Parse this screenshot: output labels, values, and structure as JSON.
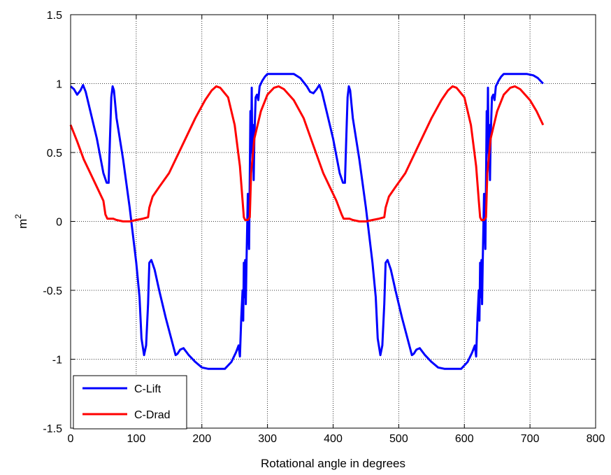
{
  "chart_data": {
    "type": "line",
    "title": "",
    "xlabel": "Rotational angle in degrees",
    "ylabel_base": "m",
    "ylabel_sup": "2",
    "xlim": [
      0,
      800
    ],
    "ylim": [
      -1.5,
      1.5
    ],
    "xticks": [
      0,
      100,
      200,
      300,
      400,
      500,
      600,
      700,
      800
    ],
    "yticks": [
      -1.5,
      -1,
      -0.5,
      0,
      0.5,
      1,
      1.5
    ],
    "xtick_labels": [
      "0",
      "100",
      "200",
      "300",
      "400",
      "500",
      "600",
      "700",
      "800"
    ],
    "ytick_labels": [
      "-1.5",
      "-1",
      "-0.5",
      "0",
      "0.5",
      "1",
      "1.5"
    ],
    "grid": true,
    "legend_position": "bottom-left",
    "series": [
      {
        "name": "C-Lift",
        "color": "#0000ff",
        "points": [
          [
            0,
            0.98
          ],
          [
            5,
            0.96
          ],
          [
            10,
            0.92
          ],
          [
            15,
            0.95
          ],
          [
            19,
            0.99
          ],
          [
            23,
            0.94
          ],
          [
            30,
            0.8
          ],
          [
            40,
            0.6
          ],
          [
            50,
            0.35
          ],
          [
            55,
            0.28
          ],
          [
            58,
            0.28
          ],
          [
            60,
            0.6
          ],
          [
            62,
            0.9
          ],
          [
            64,
            0.98
          ],
          [
            66,
            0.95
          ],
          [
            70,
            0.75
          ],
          [
            80,
            0.45
          ],
          [
            90,
            0.1
          ],
          [
            100,
            -0.3
          ],
          [
            105,
            -0.55
          ],
          [
            108,
            -0.85
          ],
          [
            112,
            -0.97
          ],
          [
            115,
            -0.9
          ],
          [
            118,
            -0.6
          ],
          [
            120,
            -0.3
          ],
          [
            123,
            -0.28
          ],
          [
            128,
            -0.35
          ],
          [
            135,
            -0.5
          ],
          [
            145,
            -0.7
          ],
          [
            155,
            -0.88
          ],
          [
            160,
            -0.97
          ],
          [
            163,
            -0.96
          ],
          [
            167,
            -0.93
          ],
          [
            172,
            -0.92
          ],
          [
            180,
            -0.97
          ],
          [
            190,
            -1.02
          ],
          [
            200,
            -1.06
          ],
          [
            210,
            -1.07
          ],
          [
            225,
            -1.07
          ],
          [
            235,
            -1.07
          ],
          [
            245,
            -1.02
          ],
          [
            252,
            -0.95
          ],
          [
            256,
            -0.9
          ],
          [
            258,
            -0.98
          ],
          [
            260,
            -0.7
          ],
          [
            262,
            -0.5
          ],
          [
            263,
            -0.72
          ],
          [
            264,
            -0.3
          ],
          [
            265,
            -0.55
          ],
          [
            266,
            -0.28
          ],
          [
            267,
            -0.6
          ],
          [
            268,
            -0.3
          ],
          [
            270,
            0.2
          ],
          [
            272,
            -0.2
          ],
          [
            274,
            0.8
          ],
          [
            275,
            0.5
          ],
          [
            276,
            0.97
          ],
          [
            277,
            0.4
          ],
          [
            278,
            0.7
          ],
          [
            279,
            0.3
          ],
          [
            280,
            0.6
          ],
          [
            282,
            0.9
          ],
          [
            284,
            0.92
          ],
          [
            286,
            0.88
          ],
          [
            288,
            0.98
          ],
          [
            292,
            1.02
          ],
          [
            296,
            1.05
          ],
          [
            300,
            1.07
          ],
          [
            310,
            1.07
          ],
          [
            320,
            1.07
          ],
          [
            340,
            1.07
          ],
          [
            350,
            1.04
          ],
          [
            360,
            0.98
          ],
          [
            365,
            0.94
          ],
          [
            370,
            0.93
          ],
          [
            375,
            0.96
          ],
          [
            379,
            0.99
          ],
          [
            383,
            0.94
          ],
          [
            390,
            0.8
          ],
          [
            400,
            0.6
          ],
          [
            410,
            0.35
          ],
          [
            415,
            0.28
          ],
          [
            418,
            0.28
          ],
          [
            420,
            0.6
          ],
          [
            422,
            0.9
          ],
          [
            424,
            0.98
          ],
          [
            426,
            0.95
          ],
          [
            430,
            0.75
          ],
          [
            440,
            0.45
          ],
          [
            450,
            0.1
          ],
          [
            460,
            -0.3
          ],
          [
            465,
            -0.55
          ],
          [
            468,
            -0.85
          ],
          [
            472,
            -0.97
          ],
          [
            475,
            -0.9
          ],
          [
            478,
            -0.6
          ],
          [
            480,
            -0.3
          ],
          [
            483,
            -0.28
          ],
          [
            488,
            -0.35
          ],
          [
            495,
            -0.5
          ],
          [
            505,
            -0.7
          ],
          [
            515,
            -0.88
          ],
          [
            520,
            -0.97
          ],
          [
            523,
            -0.96
          ],
          [
            527,
            -0.93
          ],
          [
            532,
            -0.92
          ],
          [
            540,
            -0.97
          ],
          [
            550,
            -1.02
          ],
          [
            560,
            -1.06
          ],
          [
            570,
            -1.07
          ],
          [
            585,
            -1.07
          ],
          [
            595,
            -1.07
          ],
          [
            605,
            -1.02
          ],
          [
            612,
            -0.95
          ],
          [
            616,
            -0.9
          ],
          [
            618,
            -0.98
          ],
          [
            620,
            -0.7
          ],
          [
            622,
            -0.5
          ],
          [
            623,
            -0.72
          ],
          [
            624,
            -0.3
          ],
          [
            625,
            -0.55
          ],
          [
            626,
            -0.28
          ],
          [
            627,
            -0.6
          ],
          [
            628,
            -0.3
          ],
          [
            630,
            0.2
          ],
          [
            632,
            -0.2
          ],
          [
            634,
            0.8
          ],
          [
            635,
            0.5
          ],
          [
            636,
            0.97
          ],
          [
            637,
            0.4
          ],
          [
            638,
            0.7
          ],
          [
            639,
            0.3
          ],
          [
            640,
            0.6
          ],
          [
            642,
            0.9
          ],
          [
            644,
            0.92
          ],
          [
            646,
            0.88
          ],
          [
            648,
            0.98
          ],
          [
            652,
            1.02
          ],
          [
            656,
            1.05
          ],
          [
            660,
            1.07
          ],
          [
            670,
            1.07
          ],
          [
            680,
            1.07
          ],
          [
            695,
            1.07
          ],
          [
            705,
            1.06
          ],
          [
            712,
            1.04
          ],
          [
            720,
            1.0
          ]
        ]
      },
      {
        "name": "C-Drad",
        "color": "#ff0000",
        "points": [
          [
            0,
            0.7
          ],
          [
            10,
            0.58
          ],
          [
            20,
            0.45
          ],
          [
            30,
            0.35
          ],
          [
            40,
            0.25
          ],
          [
            50,
            0.15
          ],
          [
            53,
            0.05
          ],
          [
            56,
            0.02
          ],
          [
            65,
            0.02
          ],
          [
            70,
            0.01
          ],
          [
            80,
            0.0
          ],
          [
            90,
            0.0
          ],
          [
            100,
            0.01
          ],
          [
            110,
            0.02
          ],
          [
            118,
            0.03
          ],
          [
            120,
            0.1
          ],
          [
            125,
            0.18
          ],
          [
            135,
            0.25
          ],
          [
            150,
            0.35
          ],
          [
            170,
            0.55
          ],
          [
            190,
            0.75
          ],
          [
            205,
            0.88
          ],
          [
            215,
            0.95
          ],
          [
            222,
            0.98
          ],
          [
            228,
            0.97
          ],
          [
            240,
            0.9
          ],
          [
            250,
            0.7
          ],
          [
            258,
            0.4
          ],
          [
            262,
            0.15
          ],
          [
            264,
            0.03
          ],
          [
            266,
            0.01
          ],
          [
            270,
            0.01
          ],
          [
            273,
            0.03
          ],
          [
            275,
            0.35
          ],
          [
            280,
            0.6
          ],
          [
            290,
            0.8
          ],
          [
            300,
            0.92
          ],
          [
            310,
            0.97
          ],
          [
            317,
            0.98
          ],
          [
            325,
            0.96
          ],
          [
            340,
            0.88
          ],
          [
            355,
            0.75
          ],
          [
            370,
            0.55
          ],
          [
            385,
            0.35
          ],
          [
            395,
            0.25
          ],
          [
            405,
            0.15
          ],
          [
            413,
            0.05
          ],
          [
            416,
            0.02
          ],
          [
            425,
            0.02
          ],
          [
            430,
            0.01
          ],
          [
            440,
            0.0
          ],
          [
            450,
            0.0
          ],
          [
            460,
            0.01
          ],
          [
            470,
            0.02
          ],
          [
            478,
            0.03
          ],
          [
            480,
            0.1
          ],
          [
            485,
            0.18
          ],
          [
            495,
            0.25
          ],
          [
            510,
            0.35
          ],
          [
            530,
            0.55
          ],
          [
            550,
            0.75
          ],
          [
            565,
            0.88
          ],
          [
            575,
            0.95
          ],
          [
            582,
            0.98
          ],
          [
            588,
            0.97
          ],
          [
            600,
            0.9
          ],
          [
            610,
            0.7
          ],
          [
            618,
            0.4
          ],
          [
            622,
            0.15
          ],
          [
            624,
            0.03
          ],
          [
            626,
            0.01
          ],
          [
            630,
            0.01
          ],
          [
            633,
            0.03
          ],
          [
            635,
            0.35
          ],
          [
            640,
            0.6
          ],
          [
            650,
            0.8
          ],
          [
            660,
            0.92
          ],
          [
            670,
            0.97
          ],
          [
            677,
            0.98
          ],
          [
            685,
            0.96
          ],
          [
            700,
            0.88
          ],
          [
            710,
            0.8
          ],
          [
            720,
            0.7
          ]
        ]
      }
    ]
  }
}
